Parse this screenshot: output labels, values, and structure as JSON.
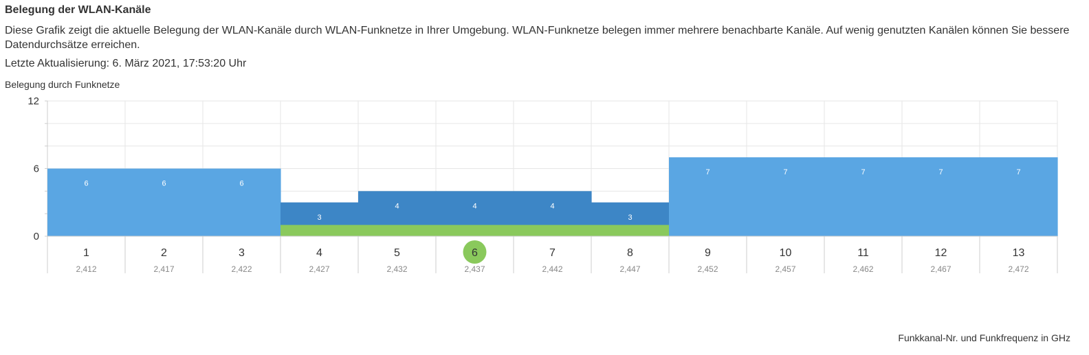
{
  "header": {
    "title": "Belegung der WLAN-Kanäle",
    "description": "Diese Grafik zeigt die aktuelle Belegung der WLAN-Kanäle durch WLAN-Funknetze in Ihrer Umgebung. WLAN-Funknetze belegen immer mehrere benachbarte Kanäle. Auf wenig genutzten Kanälen können Sie bessere Datendurchsätze erreichen.",
    "updated_label": "Letzte Aktualisierung:",
    "updated_value": "6. März 2021, 17:53:20 Uhr"
  },
  "chart_data": {
    "type": "bar",
    "ylabel": "Belegung durch Funknetze",
    "xlabel": "Funkkanal-Nr. und Funkfrequenz in GHz",
    "ylim": [
      0,
      12
    ],
    "yticks": [
      "0",
      "6",
      "12"
    ],
    "grid": true,
    "categories": [
      "1",
      "2",
      "3",
      "4",
      "5",
      "6",
      "7",
      "8",
      "9",
      "10",
      "11",
      "12",
      "13"
    ],
    "frequencies": [
      "2,412",
      "2,417",
      "2,422",
      "2,427",
      "2,432",
      "2,437",
      "2,442",
      "2,447",
      "2,452",
      "2,457",
      "2,462",
      "2,467",
      "2,472"
    ],
    "values": [
      6,
      6,
      6,
      3,
      4,
      4,
      4,
      3,
      7,
      7,
      7,
      7,
      7
    ],
    "value_labels": [
      "6",
      "6",
      "6",
      "3",
      "4",
      "4",
      "4",
      "3",
      "7",
      "7",
      "7",
      "7",
      "7"
    ],
    "own_network": {
      "channel": "6",
      "range_channels": [
        "4",
        "5",
        "6",
        "7",
        "8"
      ],
      "value": 1
    },
    "colors": {
      "light_bar": "#5aa6e3",
      "dark_bar": "#3d86c6",
      "own_network": "#8ac95c",
      "highlight_circle": "#8ac95c",
      "grid": "#e6e6e6"
    }
  }
}
